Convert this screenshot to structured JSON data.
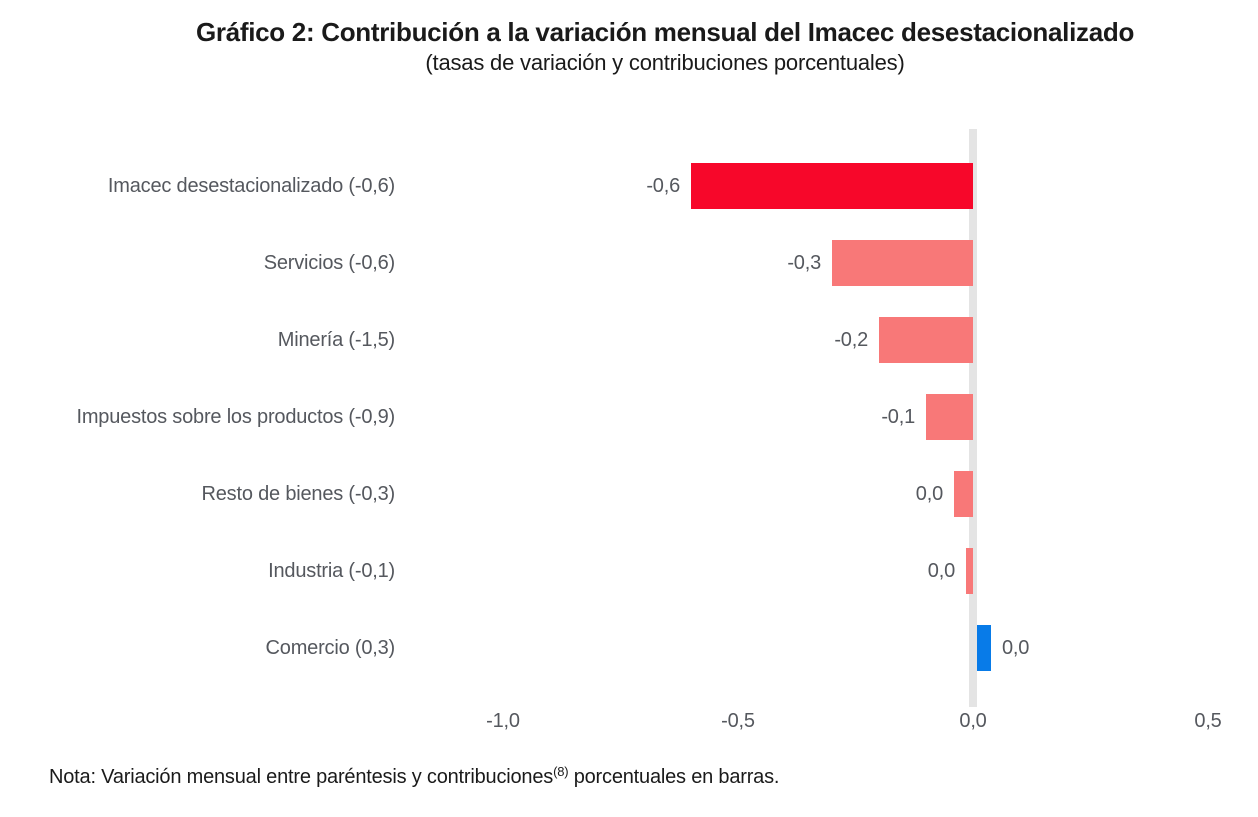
{
  "title": "Gráfico 2: Contribución a la variación mensual del Imacec desestacionalizado",
  "subtitle": "(tasas de variación y contribuciones porcentuales)",
  "note": {
    "prefix": "Nota: Variación mensual entre paréntesis y contribuciones",
    "superscript": "(8)",
    "suffix": " porcentuales en barras."
  },
  "colors": {
    "highlight_bar_red": "#F7072A",
    "contribution_bar_salmon": "#F87878",
    "positive_bar_blue": "#087BE8",
    "zero_axis_band_gray": "#E4E4E4",
    "axis_text_gray": "#55585E",
    "title_text": "#1A1A1A"
  },
  "chart_data": {
    "type": "bar",
    "orientation": "horizontal",
    "title": "Gráfico 2: Contribución a la variación mensual del Imacec desestacionalizado",
    "subtitle": "(tasas de variación y contribuciones porcentuales)",
    "xlabel": "",
    "ylabel": "",
    "xlim": [
      -1.17,
      0.6
    ],
    "grid": false,
    "legend": false,
    "zero_axis_band": true,
    "categories": [
      "Imacec desestacionalizado (-0,6)",
      "Servicios (-0,6)",
      "Minería (-1,5)",
      "Impuestos sobre los productos (-0,9)",
      "Resto de bienes (-0,3)",
      "Industria (-0,1)",
      "Comercio (0,3)"
    ],
    "values": [
      -0.6,
      -0.3,
      -0.2,
      -0.1,
      -0.04,
      -0.015,
      0.03
    ],
    "value_labels": [
      "-0,6",
      "-0,3",
      "-0,2",
      "-0,1",
      "0,0",
      "0,0",
      "0,0"
    ],
    "bar_colors": [
      "#F7072A",
      "#F87878",
      "#F87878",
      "#F87878",
      "#F87878",
      "#F87878",
      "#087BE8"
    ],
    "x_ticks": [
      {
        "value": -1.0,
        "label": "-1,0"
      },
      {
        "value": -0.5,
        "label": "-0,5"
      },
      {
        "value": 0.0,
        "label": "0,0"
      },
      {
        "value": 0.5,
        "label": "0,5"
      }
    ]
  }
}
